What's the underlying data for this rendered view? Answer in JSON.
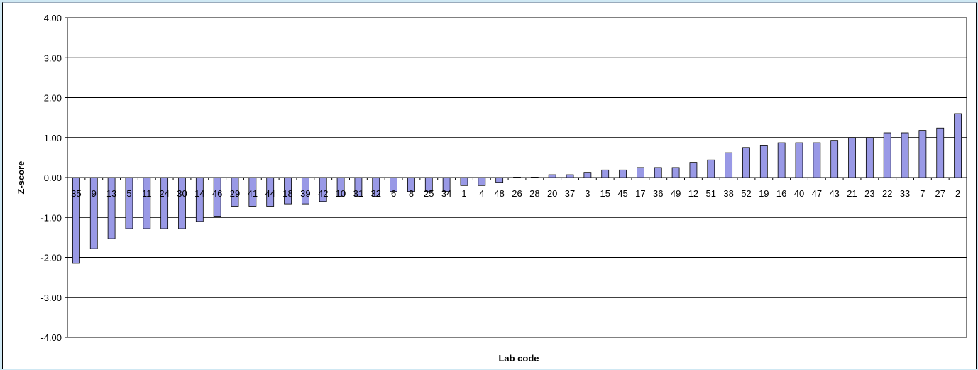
{
  "chart_data": {
    "type": "bar",
    "title": "",
    "xlabel": "Lab code",
    "ylabel": "Z-score",
    "ylim": [
      -4,
      4
    ],
    "yticks": [
      "4.00",
      "3.00",
      "2.00",
      "1.00",
      "0.00",
      "-1.00",
      "-2.00",
      "-3.00",
      "-4.00"
    ],
    "grid": true,
    "legend": "none",
    "bar_color": "#9999e6",
    "categories": [
      "35",
      "9",
      "13",
      "5",
      "11",
      "24",
      "30",
      "14",
      "46",
      "29",
      "41",
      "44",
      "18",
      "39",
      "42",
      "10",
      "31",
      "32",
      "6",
      "8",
      "25",
      "34",
      "1",
      "4",
      "48",
      "26",
      "28",
      "20",
      "37",
      "3",
      "15",
      "45",
      "17",
      "36",
      "49",
      "12",
      "51",
      "38",
      "52",
      "19",
      "16",
      "40",
      "47",
      "43",
      "21",
      "23",
      "22",
      "33",
      "7",
      "27",
      "2"
    ],
    "values": [
      -2.15,
      -1.78,
      -1.53,
      -1.28,
      -1.28,
      -1.28,
      -1.28,
      -1.1,
      -0.97,
      -0.72,
      -0.72,
      -0.72,
      -0.66,
      -0.66,
      -0.6,
      -0.47,
      -0.47,
      -0.47,
      -0.35,
      -0.35,
      -0.35,
      -0.35,
      -0.2,
      -0.2,
      -0.12,
      0.01,
      0.01,
      0.07,
      0.07,
      0.13,
      0.19,
      0.19,
      0.25,
      0.25,
      0.25,
      0.38,
      0.44,
      0.62,
      0.75,
      0.81,
      0.87,
      0.87,
      0.87,
      0.93,
      1.0,
      1.0,
      1.12,
      1.12,
      1.18,
      1.24,
      1.6
    ]
  }
}
